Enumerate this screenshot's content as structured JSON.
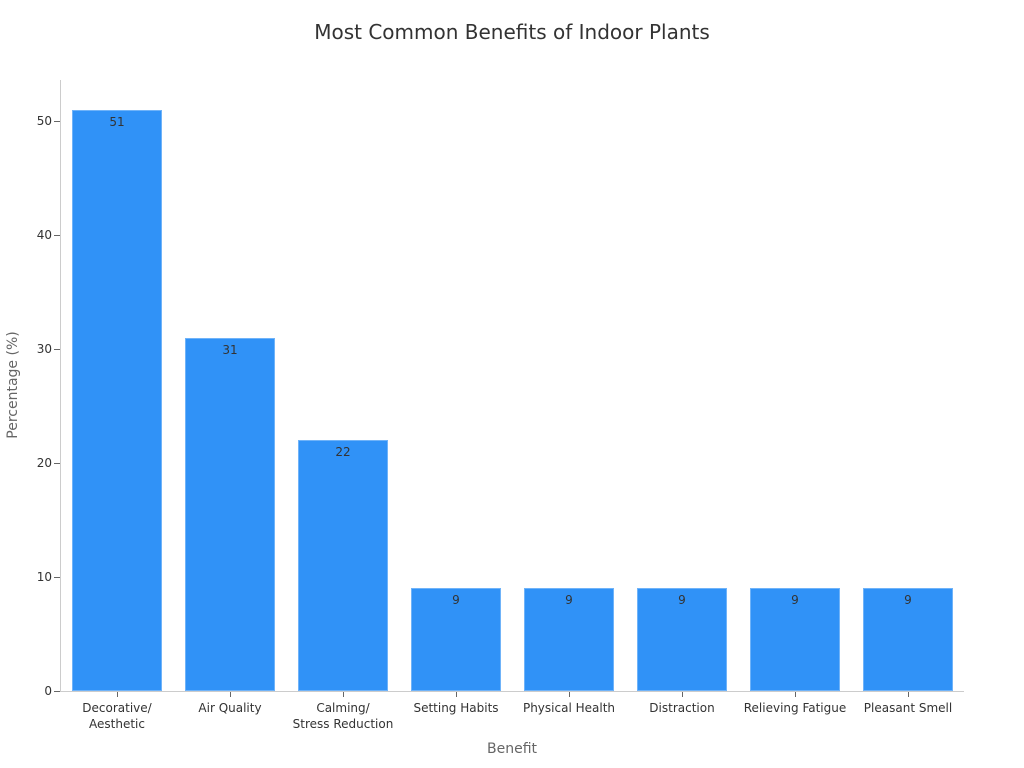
{
  "chart_data": {
    "type": "bar",
    "title": "Most Common Benefits of Indoor Plants",
    "xlabel": "Benefit",
    "ylabel": "Percentage (%)",
    "categories": [
      "Decorative/\nAesthetic",
      "Air Quality",
      "Calming/\nStress Reduction",
      "Setting Habits",
      "Physical Health",
      "Distraction",
      "Relieving Fatigue",
      "Pleasant Smell"
    ],
    "values": [
      51,
      31,
      22,
      9,
      9,
      9,
      9,
      9
    ],
    "ylim": [
      0,
      53.5
    ],
    "yticks": [
      0,
      10,
      20,
      30,
      40,
      50
    ],
    "bar_color": "#3092f7",
    "data_labels": true,
    "grid": false,
    "legend": null
  }
}
